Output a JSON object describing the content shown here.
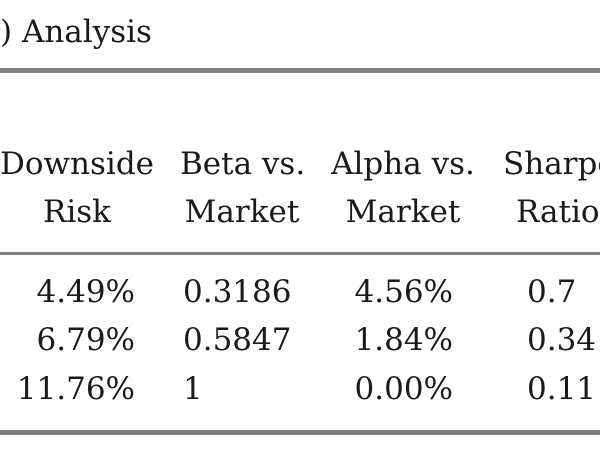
{
  "title": ") Analysis",
  "columns": [
    {
      "line1": "Downside",
      "line2": "Risk"
    },
    {
      "line1": "Beta vs.",
      "line2": "Market"
    },
    {
      "line1": "Alpha vs.",
      "line2": "Market"
    },
    {
      "line1": "Sharpe",
      "line2": "Ratio"
    }
  ],
  "rows": [
    {
      "downside_risk": "4.49%",
      "beta": "0.3186",
      "alpha": "4.56%",
      "sharpe": "0.7"
    },
    {
      "downside_risk": "6.79%",
      "beta": "0.5847",
      "alpha": "1.84%",
      "sharpe": "0.34"
    },
    {
      "downside_risk": "11.76%",
      "beta": "1",
      "alpha": "0.00%",
      "sharpe": "0.11"
    }
  ]
}
